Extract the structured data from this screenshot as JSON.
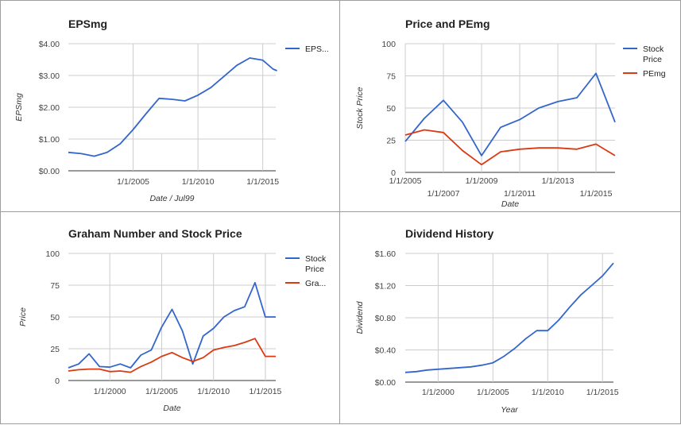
{
  "chart_data": [
    {
      "type": "line",
      "title": "EPSmg",
      "xlabel": "Date / Jul99",
      "ylabel": "EPSmg",
      "ylim": [
        0,
        4
      ],
      "yticks": [
        "$0.00",
        "$1.00",
        "$2.00",
        "$3.00",
        "$4.00"
      ],
      "xlim": [
        2000,
        2016
      ],
      "xticks": [
        {
          "v": 2005,
          "label": "1/1/2005"
        },
        {
          "v": 2010,
          "label": "1/1/2010"
        },
        {
          "v": 2015,
          "label": "1/1/2015"
        }
      ],
      "legend": "right",
      "series": [
        {
          "name": "EPS...",
          "color": "#3366cc",
          "x": [
            2000,
            2001,
            2002,
            2003,
            2004,
            2005,
            2006,
            2007,
            2008,
            2009,
            2010,
            2011,
            2012,
            2013,
            2014,
            2015,
            2015.8,
            2016.1
          ],
          "y": [
            0.58,
            0.54,
            0.46,
            0.58,
            0.85,
            1.3,
            1.8,
            2.28,
            2.25,
            2.2,
            2.38,
            2.62,
            2.97,
            3.32,
            3.55,
            3.48,
            3.2,
            3.15
          ]
        }
      ]
    },
    {
      "type": "line",
      "title": "Price and PEmg",
      "xlabel": "Date",
      "ylabel": "Stock Price",
      "ylim": [
        0,
        100
      ],
      "yticks": [
        "0",
        "25",
        "50",
        "75",
        "100"
      ],
      "xlim": [
        2005,
        2016
      ],
      "xticks": [
        {
          "v": 2005,
          "label": "1/1/2005",
          "row": 0
        },
        {
          "v": 2007,
          "label": "1/1/2007",
          "row": 1
        },
        {
          "v": 2009,
          "label": "1/1/2009",
          "row": 0
        },
        {
          "v": 2011,
          "label": "1/1/2011",
          "row": 1
        },
        {
          "v": 2013,
          "label": "1/1/2013",
          "row": 0
        },
        {
          "v": 2015,
          "label": "1/1/2015",
          "row": 1
        }
      ],
      "legend": "right",
      "series": [
        {
          "name": "Stock Price",
          "color": "#3366cc",
          "x": [
            2005,
            2006,
            2007,
            2008,
            2009,
            2010,
            2011,
            2012,
            2013,
            2014,
            2015,
            2016
          ],
          "y": [
            24,
            42,
            56,
            39,
            13,
            35,
            41,
            50,
            55,
            58,
            77,
            39
          ]
        },
        {
          "name": "PEmg",
          "color": "#dc3912",
          "x": [
            2005,
            2006,
            2007,
            2008,
            2009,
            2010,
            2011,
            2012,
            2013,
            2014,
            2015,
            2016
          ],
          "y": [
            29,
            33,
            31,
            17,
            6,
            16,
            18,
            19,
            19,
            18,
            22,
            13
          ]
        }
      ]
    },
    {
      "type": "line",
      "title": "Graham Number and Stock Price",
      "xlabel": "Date",
      "ylabel": "Price",
      "ylim": [
        0,
        100
      ],
      "yticks": [
        "0",
        "25",
        "50",
        "75",
        "100"
      ],
      "xlim": [
        1996,
        2016
      ],
      "xticks": [
        {
          "v": 2000,
          "label": "1/1/2000"
        },
        {
          "v": 2005,
          "label": "1/1/2005"
        },
        {
          "v": 2010,
          "label": "1/1/2010"
        },
        {
          "v": 2015,
          "label": "1/1/2015"
        }
      ],
      "legend": "right",
      "series": [
        {
          "name": "Stock Price",
          "color": "#3366cc",
          "x": [
            1996,
            1997,
            1998,
            1999,
            2000,
            2001,
            2002,
            2003,
            2004,
            2005,
            2006,
            2007,
            2008,
            2009,
            2010,
            2011,
            2012,
            2013,
            2014,
            2015,
            2016
          ],
          "y": [
            10,
            13,
            21,
            11,
            10.5,
            13,
            10,
            20,
            24,
            42,
            56,
            39,
            13,
            35,
            41,
            50,
            55,
            58,
            77,
            50,
            50
          ]
        },
        {
          "name": "Gra...",
          "color": "#dc3912",
          "x": [
            1996,
            1997,
            1998,
            1999,
            2000,
            2001,
            2002,
            2003,
            2004,
            2005,
            2006,
            2007,
            2008,
            2009,
            2010,
            2011,
            2012,
            2013,
            2014,
            2015,
            2016
          ],
          "y": [
            7.5,
            8.5,
            9,
            9,
            7,
            7.5,
            6.5,
            11,
            14.5,
            19,
            22,
            18,
            15,
            18,
            24,
            26,
            27.5,
            30,
            33,
            19,
            19
          ]
        }
      ]
    },
    {
      "type": "line",
      "title": "Dividend History",
      "xlabel": "Year",
      "ylabel": "Dividend",
      "ylim": [
        0,
        1.6
      ],
      "yticks": [
        "$0.00",
        "$0.40",
        "$0.80",
        "$1.20",
        "$1.60"
      ],
      "xlim": [
        1997,
        2016
      ],
      "xticks": [
        {
          "v": 2000,
          "label": "1/1/2000"
        },
        {
          "v": 2005,
          "label": "1/1/2005"
        },
        {
          "v": 2010,
          "label": "1/1/2010"
        },
        {
          "v": 2015,
          "label": "1/1/2015"
        }
      ],
      "legend": "none",
      "series": [
        {
          "name": "",
          "color": "#3366cc",
          "x": [
            1997,
            1998,
            1999,
            2000,
            2001,
            2002,
            2003,
            2004,
            2005,
            2006,
            2007,
            2008,
            2009,
            2010,
            2011,
            2012,
            2013,
            2014,
            2015,
            2016
          ],
          "y": [
            0.12,
            0.13,
            0.15,
            0.16,
            0.17,
            0.18,
            0.19,
            0.21,
            0.24,
            0.32,
            0.42,
            0.54,
            0.64,
            0.64,
            0.77,
            0.93,
            1.08,
            1.2,
            1.32,
            1.48
          ]
        }
      ]
    }
  ]
}
